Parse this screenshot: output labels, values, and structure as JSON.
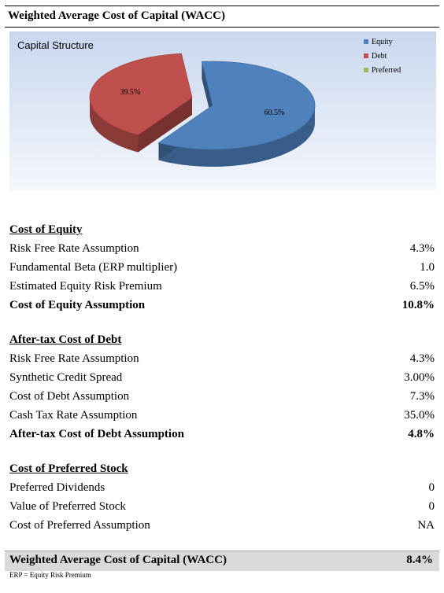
{
  "header": {
    "title": "Weighted Average Cost of Capital (WACC)"
  },
  "chart_data": {
    "type": "pie",
    "title": "Capital Structure",
    "categories": [
      "Equity",
      "Debt",
      "Preferred"
    ],
    "values": [
      60.5,
      39.5,
      0
    ],
    "data_labels": [
      "60.5%",
      "39.5%",
      ""
    ],
    "colors": [
      "#4f81bd",
      "#c0504d",
      "#9bbb59"
    ],
    "legend_position": "top-right",
    "style": "3d-exploded"
  },
  "cost_of_equity": {
    "heading": "Cost of Equity",
    "rows": [
      {
        "label": "Risk Free Rate Assumption",
        "value": "4.3%"
      },
      {
        "label": "Fundamental Beta (ERP multiplier)",
        "value": "1.0"
      },
      {
        "label": "Estimated Equity Risk Premium",
        "value": "6.5%"
      }
    ],
    "total": {
      "label": "Cost of Equity Assumption",
      "value": "10.8%"
    }
  },
  "cost_of_debt": {
    "heading": "After-tax Cost of Debt",
    "rows": [
      {
        "label": "Risk Free Rate Assumption",
        "value": "4.3%"
      },
      {
        "label": "Synthetic Credit Spread",
        "value": "3.00%"
      },
      {
        "label": "Cost of Debt Assumption",
        "value": "7.3%"
      },
      {
        "label": "Cash Tax Rate Assumption",
        "value": "35.0%"
      }
    ],
    "total": {
      "label": "After-tax Cost of Debt Assumption",
      "value": "4.8%"
    }
  },
  "cost_of_preferred": {
    "heading": "Cost of Preferred Stock",
    "rows": [
      {
        "label": "Preferred Dividends",
        "value": "0"
      },
      {
        "label": "Value of Preferred Stock",
        "value": "0"
      },
      {
        "label": "Cost of Preferred Assumption",
        "value": "NA"
      }
    ]
  },
  "wacc": {
    "label": "Weighted Average Cost of Capital (WACC)",
    "value": "8.4%"
  },
  "footnote": "ERP = Equity Risk Premium"
}
